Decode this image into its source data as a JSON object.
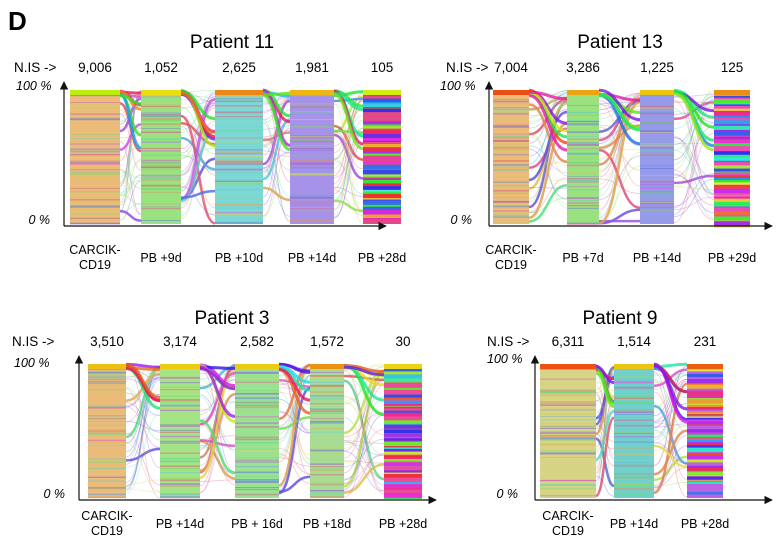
{
  "figure_label": "D",
  "chart_data": [
    {
      "type": "alluvial",
      "title": "Patient 11",
      "count_prefix": "N.IS ->",
      "ylabel_top": "100 %",
      "ylabel_bottom": "0 %",
      "categories": [
        "CARCIK-\nCD19",
        "PB +9d",
        "PB +10d",
        "PB +14d",
        "PB +28d"
      ],
      "counts": [
        "9,006",
        "1,052",
        "2,625",
        "1,981",
        "105"
      ],
      "count_values": [
        9006,
        1052,
        2625,
        1981,
        105
      ],
      "ylim": [
        0,
        100
      ]
    },
    {
      "type": "alluvial",
      "title": "Patient 13",
      "count_prefix": "N.IS ->",
      "ylabel_top": "100 %",
      "ylabel_bottom": "0 %",
      "categories": [
        "CARCIK-\nCD19",
        "PB +7d",
        "PB +14d",
        "PB +29d"
      ],
      "counts": [
        "7,004",
        "3,286",
        "1,225",
        "125"
      ],
      "count_values": [
        7004,
        3286,
        1225,
        125
      ],
      "ylim": [
        0,
        100
      ]
    },
    {
      "type": "alluvial",
      "title": "Patient 3",
      "count_prefix": "N.IS ->",
      "ylabel_top": "100 %",
      "ylabel_bottom": "0 %",
      "categories": [
        "CARCIK-\nCD19",
        "PB +14d",
        "PB + 16d",
        "PB +18d",
        "PB +28d"
      ],
      "counts": [
        "3,510",
        "3,174",
        "2,582",
        "1,572",
        "30"
      ],
      "count_values": [
        3510,
        3174,
        2582,
        1572,
        30
      ],
      "ylim": [
        0,
        100
      ]
    },
    {
      "type": "alluvial",
      "title": "Patient 9",
      "count_prefix": "N.IS ->",
      "ylabel_top": "100 %",
      "ylabel_bottom": "0 %",
      "categories": [
        "CARCIK-\nCD19",
        "PB +14d",
        "PB +28d"
      ],
      "counts": [
        "6,311",
        "1,514",
        "231"
      ],
      "count_values": [
        6311,
        1514,
        231
      ],
      "ylim": [
        0,
        100
      ]
    }
  ],
  "colors": {
    "carcik": "#e8b46a",
    "p11": [
      "#e8b46a",
      "#8fde72",
      "#6fd3cf",
      "#9c86e6",
      "#e0357a"
    ],
    "p13": [
      "#e8b46a",
      "#8fde72",
      "#8a8fe8",
      "#e83ab0"
    ],
    "p3": [
      "#e8b46a",
      "#9be07a",
      "#8fdf86",
      "#9fd88a",
      "#e8398c"
    ],
    "p9": [
      "#d4cf78",
      "#62cbc5",
      "#b64fe0"
    ]
  }
}
